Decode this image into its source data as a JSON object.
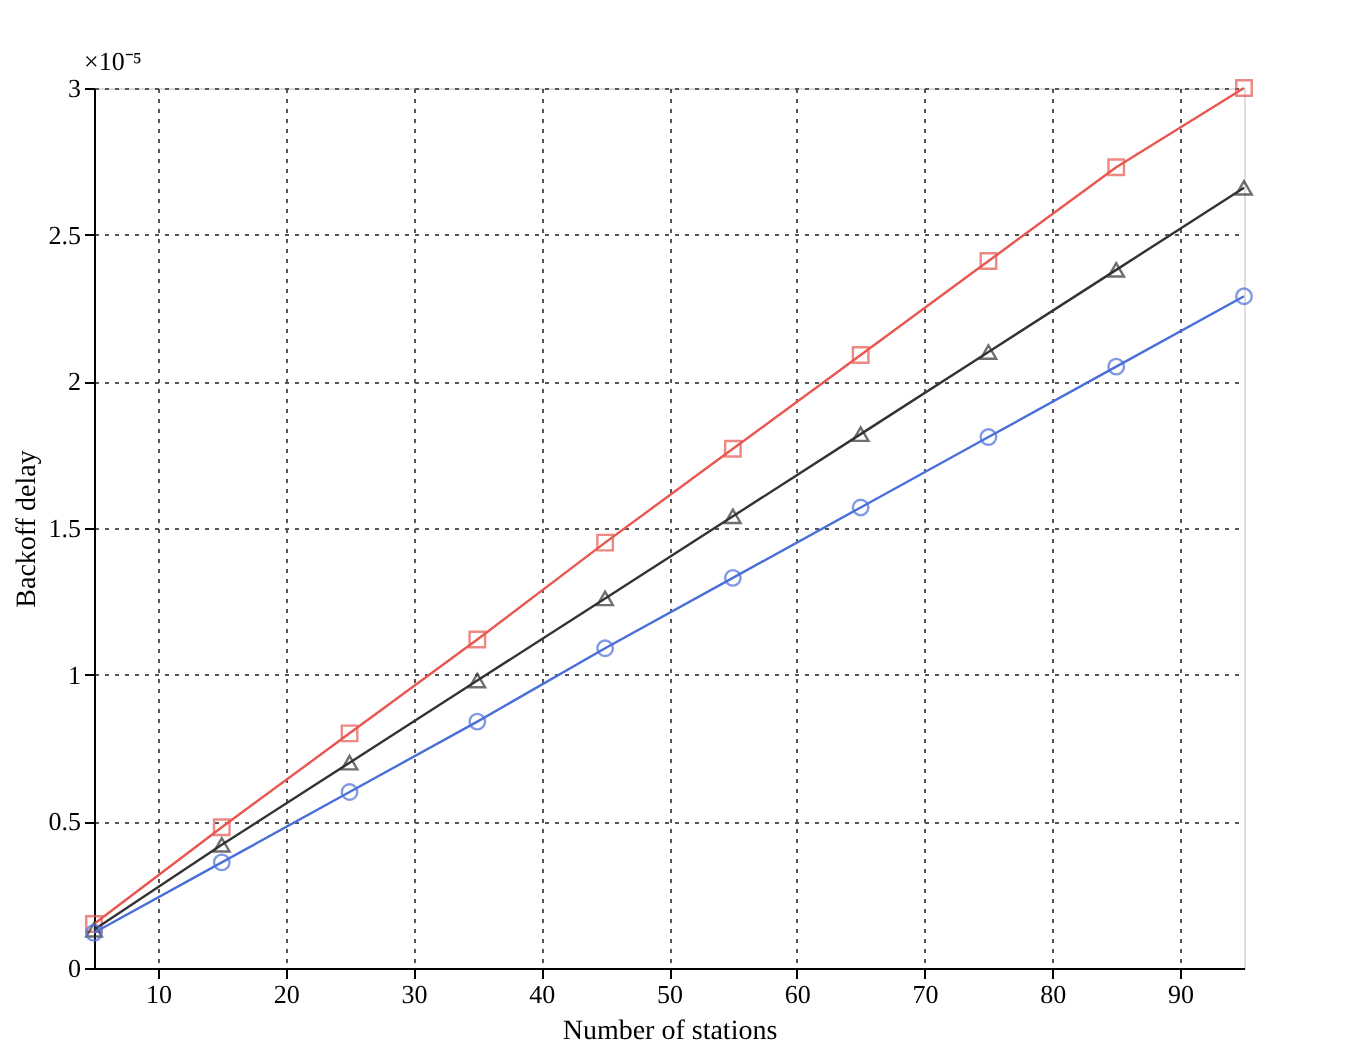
{
  "chart_data": {
    "type": "line",
    "xlabel": "Number of stations",
    "ylabel": "Backoff delay",
    "annotations": [
      "×10⁻⁵"
    ],
    "x": [
      5,
      15,
      25,
      35,
      45,
      55,
      65,
      75,
      85,
      95
    ],
    "series": [
      {
        "color": "#e8564f",
        "marker": "square",
        "values": [
          0.15,
          0.48,
          0.8,
          1.12,
          1.45,
          1.77,
          2.09,
          2.41,
          2.73,
          3.0
        ]
      },
      {
        "color": "#333333",
        "marker": "triangle",
        "values": [
          0.13,
          0.42,
          0.7,
          0.98,
          1.26,
          1.54,
          1.82,
          2.1,
          2.38,
          2.66
        ]
      },
      {
        "color": "#4a6fd8",
        "marker": "circle",
        "values": [
          0.12,
          0.36,
          0.6,
          0.84,
          1.09,
          1.33,
          1.57,
          1.81,
          2.05,
          2.29
        ]
      }
    ],
    "xlim": [
      5,
      95
    ],
    "xticks": [
      10,
      20,
      30,
      40,
      50,
      60,
      70,
      80,
      90
    ],
    "ylim": [
      0,
      3
    ],
    "yticks": [
      0,
      0.5,
      1,
      1.5,
      2,
      2.5,
      3
    ],
    "grid": true,
    "line_style": "solid"
  }
}
